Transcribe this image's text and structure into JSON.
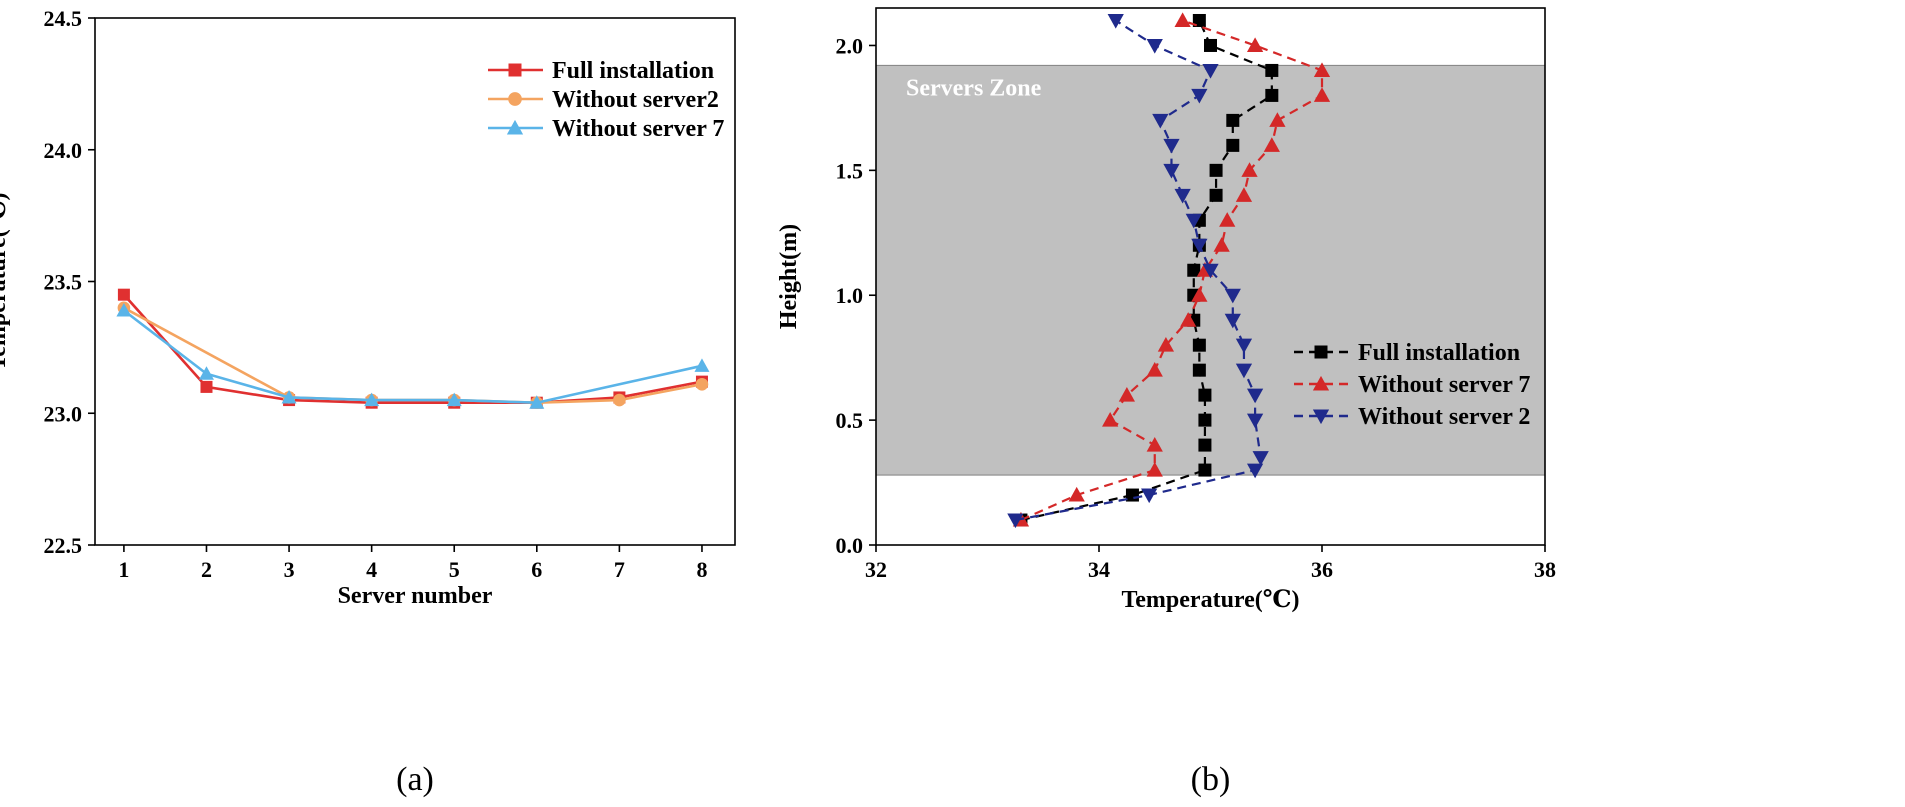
{
  "chart_data": [
    {
      "type": "line",
      "panel_label": "(a)",
      "xlabel": "Server number",
      "ylabel": "Temperature(℃)",
      "xlim": [
        0.65,
        8.4
      ],
      "ylim": [
        22.5,
        24.5
      ],
      "xticks": [
        1,
        2,
        3,
        4,
        5,
        6,
        7,
        8
      ],
      "yticks": [
        22.5,
        23.0,
        23.5,
        24.0,
        24.5
      ],
      "ytick_labels": [
        "22.5",
        "23.0",
        "23.5",
        "24.0",
        "24.5"
      ],
      "grid": false,
      "legend_position": "top-right",
      "series": [
        {
          "name": "Full installation",
          "color": "#e03030",
          "marker": "square",
          "x": [
            1,
            2,
            3,
            4,
            5,
            6,
            7,
            8
          ],
          "y": [
            23.45,
            23.1,
            23.05,
            23.04,
            23.04,
            23.04,
            23.06,
            23.12
          ]
        },
        {
          "name": "Without server2",
          "color": "#f4a460",
          "marker": "circle",
          "x": [
            1,
            3,
            4,
            5,
            6,
            7,
            8
          ],
          "y": [
            23.4,
            23.06,
            23.05,
            23.05,
            23.04,
            23.05,
            23.11
          ]
        },
        {
          "name": "Without server 7",
          "color": "#5ab4e8",
          "marker": "triangle-up",
          "x": [
            1,
            2,
            3,
            4,
            5,
            6,
            8
          ],
          "y": [
            23.39,
            23.15,
            23.06,
            23.05,
            23.05,
            23.04,
            23.18
          ]
        }
      ]
    },
    {
      "type": "line",
      "panel_label": "(b)",
      "xlabel": "Temperature(℃)",
      "ylabel": "Height(m)",
      "xlim": [
        32,
        38
      ],
      "ylim": [
        0.0,
        2.15
      ],
      "xticks": [
        32,
        34,
        36,
        38
      ],
      "yticks": [
        0.0,
        0.5,
        1.0,
        1.5,
        2.0
      ],
      "ytick_labels": [
        "0.0",
        "0.5",
        "1.0",
        "1.5",
        "2.0"
      ],
      "grid": false,
      "legend_position": "bottom-right",
      "annotation": {
        "text": "Servers Zone",
        "y_range": [
          0.28,
          1.92
        ],
        "color": "#c0c0c0"
      },
      "series": [
        {
          "name": "Full installation",
          "color": "#000000",
          "marker": "square",
          "x": [
            33.3,
            34.3,
            34.95,
            34.95,
            34.95,
            34.95,
            34.9,
            34.9,
            34.85,
            34.85,
            34.85,
            34.9,
            34.9,
            35.05,
            35.05,
            35.2,
            35.2,
            35.55,
            35.55,
            35.0,
            34.9
          ],
          "y": [
            0.1,
            0.2,
            0.3,
            0.4,
            0.5,
            0.6,
            0.7,
            0.8,
            0.9,
            1.0,
            1.1,
            1.2,
            1.3,
            1.4,
            1.5,
            1.6,
            1.7,
            1.8,
            1.9,
            2.0,
            2.1
          ]
        },
        {
          "name": "Without server 7",
          "color": "#d42828",
          "marker": "triangle-up",
          "x": [
            33.3,
            33.8,
            34.5,
            34.5,
            34.1,
            34.25,
            34.5,
            34.6,
            34.8,
            34.9,
            34.95,
            35.1,
            35.15,
            35.3,
            35.35,
            35.55,
            35.6,
            36.0,
            36.0,
            35.4,
            34.75
          ],
          "y": [
            0.1,
            0.2,
            0.3,
            0.4,
            0.5,
            0.6,
            0.7,
            0.8,
            0.9,
            1.0,
            1.1,
            1.2,
            1.3,
            1.4,
            1.5,
            1.6,
            1.7,
            1.8,
            1.9,
            2.0,
            2.1
          ]
        },
        {
          "name": "Without server 2",
          "color": "#1f2a8c",
          "marker": "triangle-down",
          "x": [
            33.25,
            34.45,
            35.4,
            35.45,
            35.4,
            35.4,
            35.3,
            35.3,
            35.2,
            35.2,
            35.0,
            34.9,
            34.85,
            34.75,
            34.65,
            34.65,
            34.55,
            34.9,
            35.0,
            34.5,
            34.15
          ],
          "y": [
            0.1,
            0.2,
            0.3,
            0.35,
            0.5,
            0.6,
            0.7,
            0.8,
            0.9,
            1.0,
            1.1,
            1.2,
            1.3,
            1.4,
            1.5,
            1.6,
            1.7,
            1.8,
            1.9,
            2.0,
            2.1
          ]
        }
      ]
    }
  ]
}
